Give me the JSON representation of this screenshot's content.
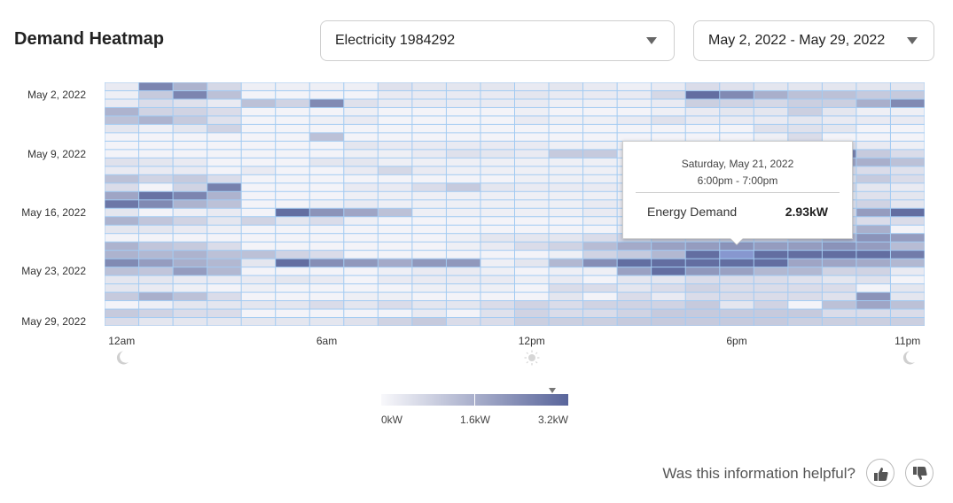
{
  "header": {
    "title": "Demand Heatmap",
    "meter_select": {
      "value": "Electricity 1984292"
    },
    "date_select": {
      "value": "May 2, 2022 - May 29, 2022"
    }
  },
  "tooltip": {
    "date": "Saturday, May 21, 2022",
    "time": "6:00pm - 7:00pm",
    "label": "Energy Demand",
    "value": "2.93kW"
  },
  "legend": {
    "min_label": "0kW",
    "mid_label": "1.6kW",
    "max_label": "3.2kW",
    "marker_value": 2.93
  },
  "footer": {
    "question": "Was this information helpful?",
    "thumbs_up": "thumbs-up-icon",
    "thumbs_down": "thumbs-down-icon"
  },
  "chart_data": {
    "type": "heatmap",
    "unit": "kW",
    "color_range": [
      0,
      3.2
    ],
    "colors": {
      "low": "#f8f8fb",
      "high": "#59659b",
      "grid": "#a3cbf2",
      "hover": "#8797cf"
    },
    "x_tick_labels": [
      {
        "label": "12am",
        "hour": 0,
        "icon": "moon-icon"
      },
      {
        "label": "6am",
        "hour": 6
      },
      {
        "label": "12pm",
        "hour": 12,
        "icon": "sun-icon"
      },
      {
        "label": "6pm",
        "hour": 18
      },
      {
        "label": "11pm",
        "hour": 23,
        "icon": "moon-icon"
      }
    ],
    "y_tick_labels": [
      {
        "label": "May 2, 2022",
        "row": 1
      },
      {
        "label": "May 9, 2022",
        "row": 8
      },
      {
        "label": "May 16, 2022",
        "row": 15
      },
      {
        "label": "May 23, 2022",
        "row": 22
      },
      {
        "label": "May 29, 2022",
        "row": 28
      }
    ],
    "hovered": {
      "row": 20,
      "hour": 18
    },
    "values": [
      [
        0.3,
        2.5,
        1.5,
        0.7,
        0.2,
        0.2,
        0.2,
        0.2,
        0.5,
        0.4,
        0.4,
        0.4,
        0.3,
        0.4,
        0.3,
        0.2,
        0.3,
        0.6,
        0.5,
        0.4,
        0.4,
        0.4,
        0.4,
        0.4
      ],
      [
        0.2,
        1.0,
        2.5,
        1.2,
        0.1,
        0.1,
        0.1,
        0.1,
        0.3,
        0.3,
        0.3,
        0.3,
        0.4,
        0.3,
        0.3,
        0.3,
        0.7,
        3.0,
        2.4,
        1.6,
        1.2,
        1.2,
        1.0,
        1.0
      ],
      [
        0.3,
        0.6,
        0.5,
        0.3,
        1.2,
        0.8,
        2.4,
        0.5,
        0.3,
        0.3,
        0.3,
        0.3,
        0.3,
        0.2,
        0.2,
        0.2,
        0.3,
        0.9,
        0.8,
        0.7,
        0.9,
        0.9,
        1.6,
        2.4
      ],
      [
        1.5,
        0.8,
        0.8,
        0.6,
        0.1,
        0.1,
        0.1,
        0.2,
        0.1,
        0.1,
        0.1,
        0.1,
        0.2,
        0.1,
        0.1,
        0.1,
        0.2,
        0.3,
        0.4,
        0.4,
        0.9,
        0.4,
        0.2,
        0.2
      ],
      [
        1.2,
        1.5,
        1.0,
        0.5,
        0.1,
        0.1,
        0.2,
        0.3,
        0.1,
        0.1,
        0.1,
        0.1,
        0.3,
        0.2,
        0.2,
        0.3,
        0.5,
        0.3,
        0.3,
        0.3,
        0.4,
        0.3,
        0.3,
        0.3
      ],
      [
        0.4,
        0.2,
        0.4,
        0.8,
        0.1,
        0.1,
        0.1,
        0.1,
        0.1,
        0.1,
        0.1,
        0.1,
        0.1,
        0.1,
        0.1,
        0.1,
        0.1,
        0.1,
        0.1,
        0.5,
        0.5,
        0.4,
        0.1,
        0.1
      ],
      [
        0.1,
        0.1,
        0.1,
        0.1,
        0.1,
        0.1,
        1.2,
        0.1,
        0.1,
        0.1,
        0.1,
        0.1,
        0.1,
        0.1,
        0.1,
        0.1,
        0.1,
        0.1,
        0.1,
        0.2,
        0.6,
        0.1,
        0.1,
        0.1
      ],
      [
        0.1,
        0.1,
        0.1,
        0.1,
        0.1,
        0.1,
        0.1,
        0.4,
        0.3,
        0.3,
        0.3,
        0.3,
        0.3,
        0.2,
        0.2,
        0.2,
        0.2,
        0.3,
        0.3,
        0.3,
        0.3,
        0.5,
        0.3,
        0.2
      ],
      [
        0.1,
        0.1,
        0.1,
        0.1,
        0.1,
        0.1,
        0.1,
        0.2,
        0.2,
        0.3,
        0.5,
        0.4,
        0.3,
        1.0,
        1.0,
        0.3,
        0.3,
        0.4,
        0.4,
        0.4,
        0.5,
        2.5,
        1.0,
        0.6
      ],
      [
        0.5,
        0.4,
        0.3,
        0.1,
        0.1,
        0.1,
        0.4,
        0.4,
        0.2,
        0.2,
        0.2,
        0.2,
        0.2,
        0.2,
        0.2,
        0.2,
        0.3,
        0.4,
        0.4,
        0.4,
        0.5,
        1.8,
        1.6,
        1.2
      ],
      [
        0.3,
        0.3,
        0.3,
        0.1,
        0.3,
        0.1,
        0.1,
        0.3,
        0.7,
        0.3,
        0.2,
        0.2,
        0.2,
        0.2,
        0.2,
        0.2,
        0.3,
        0.3,
        0.3,
        0.4,
        0.4,
        0.6,
        0.6,
        0.5
      ],
      [
        1.2,
        0.8,
        1.0,
        0.6,
        0.1,
        0.1,
        0.1,
        0.1,
        0.1,
        0.1,
        0.1,
        0.1,
        0.2,
        0.2,
        0.2,
        0.2,
        0.2,
        0.3,
        0.3,
        0.3,
        0.3,
        0.5,
        1.0,
        0.6
      ],
      [
        0.6,
        0.1,
        0.8,
        2.6,
        0.1,
        0.1,
        0.1,
        0.3,
        0.3,
        0.6,
        1.0,
        0.4,
        0.3,
        0.3,
        0.3,
        0.3,
        0.3,
        0.4,
        0.4,
        0.4,
        0.4,
        0.6,
        0.4,
        0.3
      ],
      [
        1.8,
        2.9,
        2.5,
        1.5,
        0.1,
        0.1,
        0.1,
        0.2,
        0.2,
        0.2,
        0.2,
        0.2,
        0.2,
        0.2,
        0.2,
        0.2,
        0.3,
        0.3,
        0.3,
        0.3,
        0.4,
        0.4,
        0.5,
        0.4
      ],
      [
        2.8,
        2.4,
        1.5,
        1.2,
        0.1,
        0.1,
        0.2,
        0.3,
        0.2,
        0.2,
        0.2,
        0.2,
        0.2,
        0.2,
        0.3,
        0.3,
        0.4,
        0.4,
        0.4,
        0.4,
        0.5,
        0.5,
        0.8,
        0.4
      ],
      [
        0.4,
        0.1,
        0.2,
        0.3,
        0.1,
        3.0,
        2.2,
        1.8,
        1.2,
        0.2,
        0.2,
        0.2,
        0.2,
        0.2,
        0.3,
        0.3,
        0.4,
        0.4,
        0.4,
        0.4,
        0.5,
        0.6,
        2.0,
        3.0
      ],
      [
        1.5,
        1.1,
        0.8,
        0.4,
        0.8,
        0.4,
        0.6,
        0.2,
        0.1,
        0.1,
        0.1,
        0.1,
        0.1,
        0.1,
        0.2,
        0.3,
        0.4,
        0.4,
        0.4,
        0.5,
        0.6,
        0.7,
        0.6,
        0.6
      ],
      [
        0.4,
        0.4,
        0.3,
        0.2,
        0.1,
        0.1,
        0.1,
        0.1,
        0.1,
        0.1,
        0.1,
        0.1,
        0.1,
        0.1,
        0.1,
        0.3,
        0.4,
        0.5,
        0.5,
        0.5,
        0.6,
        0.8,
        1.6,
        0.1
      ],
      [
        0.1,
        0.1,
        0.1,
        0.1,
        0.1,
        0.1,
        0.1,
        0.1,
        0.1,
        0.1,
        0.2,
        0.4,
        0.4,
        0.4,
        0.6,
        0.8,
        1.0,
        1.0,
        1.0,
        1.0,
        1.2,
        1.5,
        2.2,
        2.0
      ],
      [
        1.5,
        1.1,
        1.0,
        0.6,
        0.1,
        0.1,
        0.1,
        0.1,
        0.1,
        0.1,
        0.2,
        0.3,
        0.6,
        0.8,
        1.3,
        1.7,
        1.9,
        2.0,
        2.2,
        2.0,
        2.0,
        2.2,
        2.0,
        1.3
      ],
      [
        1.5,
        1.4,
        1.5,
        1.2,
        1.2,
        0.8,
        0.6,
        0.1,
        0.1,
        0.1,
        0.1,
        0.1,
        0.1,
        0.2,
        0.8,
        1.0,
        1.4,
        3.0,
        2.93,
        3.0,
        3.0,
        3.0,
        3.0,
        2.7
      ],
      [
        2.4,
        2.0,
        1.6,
        1.4,
        0.4,
        3.0,
        2.3,
        2.1,
        1.7,
        2.1,
        2.1,
        0.2,
        0.4,
        1.4,
        2.3,
        3.0,
        3.0,
        3.0,
        3.0,
        3.0,
        1.8,
        1.8,
        1.7,
        1.4
      ],
      [
        1.2,
        1.1,
        2.0,
        1.4,
        0.1,
        0.1,
        0.1,
        0.1,
        0.2,
        0.3,
        0.3,
        0.2,
        0.1,
        0.2,
        0.2,
        1.9,
        3.0,
        2.1,
        1.9,
        1.4,
        1.4,
        0.8,
        0.8,
        0.3
      ],
      [
        0.4,
        0.4,
        0.3,
        0.3,
        0.3,
        0.4,
        0.3,
        0.1,
        0.3,
        0.3,
        0.3,
        0.3,
        0.2,
        0.3,
        0.1,
        0.4,
        0.4,
        0.6,
        0.6,
        0.6,
        0.5,
        0.4,
        0.5,
        0.1
      ],
      [
        0.4,
        0.3,
        0.2,
        0.1,
        0.2,
        0.1,
        0.1,
        0.1,
        0.1,
        0.2,
        0.2,
        0.2,
        0.1,
        0.6,
        0.6,
        0.4,
        0.6,
        0.8,
        0.6,
        0.6,
        0.6,
        0.6,
        0.1,
        0.4
      ],
      [
        1.0,
        1.6,
        1.2,
        0.6,
        0.1,
        0.1,
        0.1,
        0.2,
        0.2,
        0.1,
        0.1,
        0.1,
        0.1,
        0.4,
        0.1,
        0.6,
        0.3,
        0.6,
        0.6,
        0.6,
        0.6,
        0.5,
        2.2,
        0.4
      ],
      [
        0.1,
        0.2,
        0.4,
        0.4,
        0.4,
        0.4,
        0.6,
        0.4,
        0.6,
        0.4,
        0.4,
        0.6,
        0.8,
        0.6,
        0.8,
        0.8,
        0.8,
        1.0,
        0.4,
        0.8,
        0.1,
        1.2,
        1.8,
        1.2
      ],
      [
        1.0,
        0.8,
        0.6,
        0.6,
        0.1,
        0.1,
        0.1,
        0.1,
        0.1,
        0.3,
        0.1,
        0.5,
        0.8,
        0.6,
        0.6,
        0.8,
        1.0,
        1.0,
        1.0,
        1.0,
        1.0,
        0.6,
        0.6,
        0.6
      ],
      [
        0.6,
        0.4,
        0.4,
        0.4,
        0.4,
        0.4,
        0.4,
        0.5,
        0.8,
        1.0,
        0.6,
        0.6,
        0.9,
        0.9,
        0.9,
        1.0,
        1.0,
        1.0,
        1.0,
        1.0,
        0.9,
        0.9,
        0.9,
        0.9
      ]
    ]
  }
}
